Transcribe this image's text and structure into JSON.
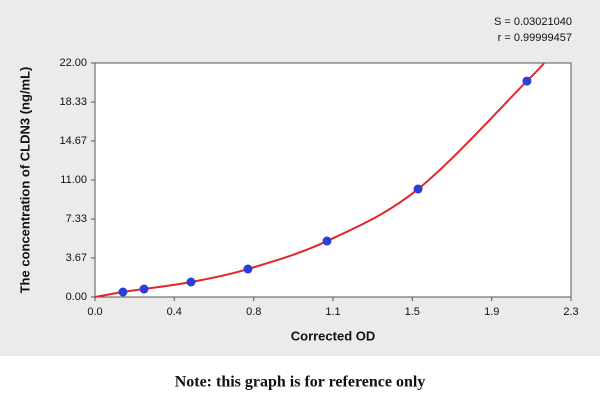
{
  "chart_data": {
    "type": "scatter",
    "x_label": "Corrected OD",
    "y_label": "The concentration of CLDN3 (ng/mL)",
    "annotations": [
      "S = 0.03021040",
      "r = 0.99999457"
    ],
    "series": [
      {
        "color": "#2b3fd6",
        "x": [
          0.135,
          0.237,
          0.464,
          0.739,
          1.121,
          1.561,
          2.087
        ],
        "values": [
          0.47,
          0.75,
          1.41,
          2.63,
          5.26,
          10.15,
          20.3
        ]
      }
    ],
    "curve": {
      "color": "#e3262a",
      "x": [
        0,
        0.135,
        0.237,
        0.464,
        0.739,
        1.121,
        1.561,
        2.087,
        2.17
      ],
      "values": [
        0,
        0.47,
        0.75,
        1.41,
        2.63,
        5.26,
        10.15,
        20.3,
        22
      ]
    },
    "xlim": [
      0,
      2.3
    ],
    "xticks": [
      {
        "value": 0,
        "label": "0.0"
      },
      {
        "value": 0.383,
        "label": "0.4"
      },
      {
        "value": 0.767,
        "label": "0.8"
      },
      {
        "value": 1.15,
        "label": "1.1"
      },
      {
        "value": 1.533,
        "label": "1.5"
      },
      {
        "value": 1.917,
        "label": "1.9"
      },
      2.3
    ],
    "ylim": [
      0,
      22
    ],
    "yticks": [
      {
        "value": 0,
        "label": "0.00"
      },
      3.67,
      7.33,
      {
        "value": 11,
        "label": "11.00"
      },
      14.67,
      18.33,
      {
        "value": 22,
        "label": "22.00"
      }
    ]
  },
  "note": "Note: this graph is for reference only"
}
